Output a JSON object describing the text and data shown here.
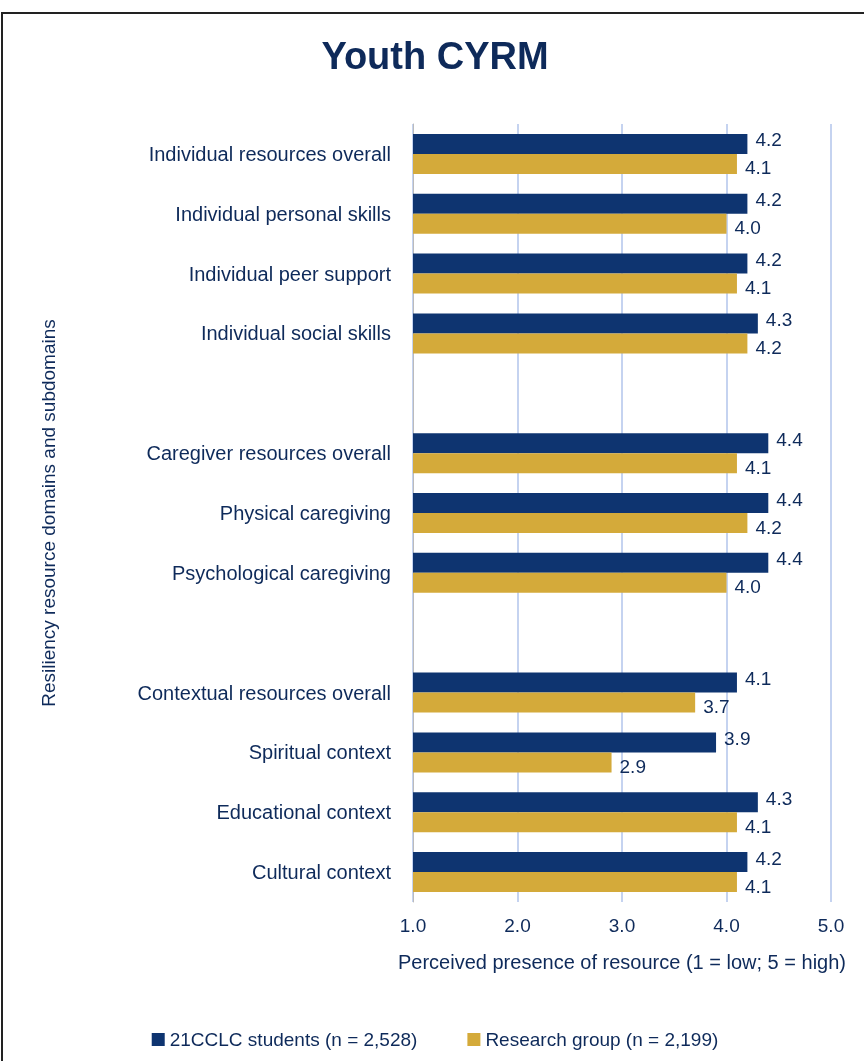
{
  "chart_data": {
    "type": "bar",
    "orientation": "horizontal",
    "title": "Youth CYRM",
    "xlabel": "Perceived presence of resource (1 = low; 5 = high)",
    "ylabel": "Resiliency resource domains and subdomains",
    "categories": [
      "Individual resources overall",
      "Individual personal skills",
      "Individual peer support",
      "Individual social skills",
      null,
      "Caregiver resources overall",
      "Physical caregiving",
      "Psychological caregiving",
      null,
      "Contextual resources overall",
      "Spiritual context",
      "Educational context",
      "Cultural context"
    ],
    "series": [
      {
        "name": "21CCLC students (n = 2,528)",
        "color": "#0e3470",
        "values": [
          4.2,
          4.2,
          4.2,
          4.3,
          null,
          4.4,
          4.4,
          4.4,
          null,
          4.1,
          3.9,
          4.3,
          4.2
        ],
        "value_labels": [
          "4.2",
          "4.2",
          "4.2",
          "4.3",
          null,
          "4.4",
          "4.4",
          "4.4",
          null,
          "4.1",
          "3.9",
          "4.3",
          "4.2"
        ]
      },
      {
        "name": "Research group (n = 2,199)",
        "color": "#d4aa3a",
        "values": [
          4.1,
          4.0,
          4.1,
          4.2,
          null,
          4.1,
          4.2,
          4.0,
          null,
          3.7,
          2.9,
          4.1,
          4.1
        ],
        "value_labels": [
          "4.1",
          "4.0",
          "4.1",
          "4.2",
          null,
          "4.1",
          "4.2",
          "4.0",
          null,
          "3.7",
          "2.9",
          "4.1",
          "4.1"
        ]
      }
    ],
    "xlim": [
      1,
      5
    ],
    "xticks": [
      {
        "value": 1,
        "label": "1.0"
      },
      {
        "value": 2,
        "label": "2.0"
      },
      {
        "value": 3,
        "label": "3.0"
      },
      {
        "value": 4,
        "label": "4.0"
      },
      {
        "value": 5,
        "label": "5.0"
      }
    ],
    "grid": "x",
    "legend": "bottom"
  }
}
